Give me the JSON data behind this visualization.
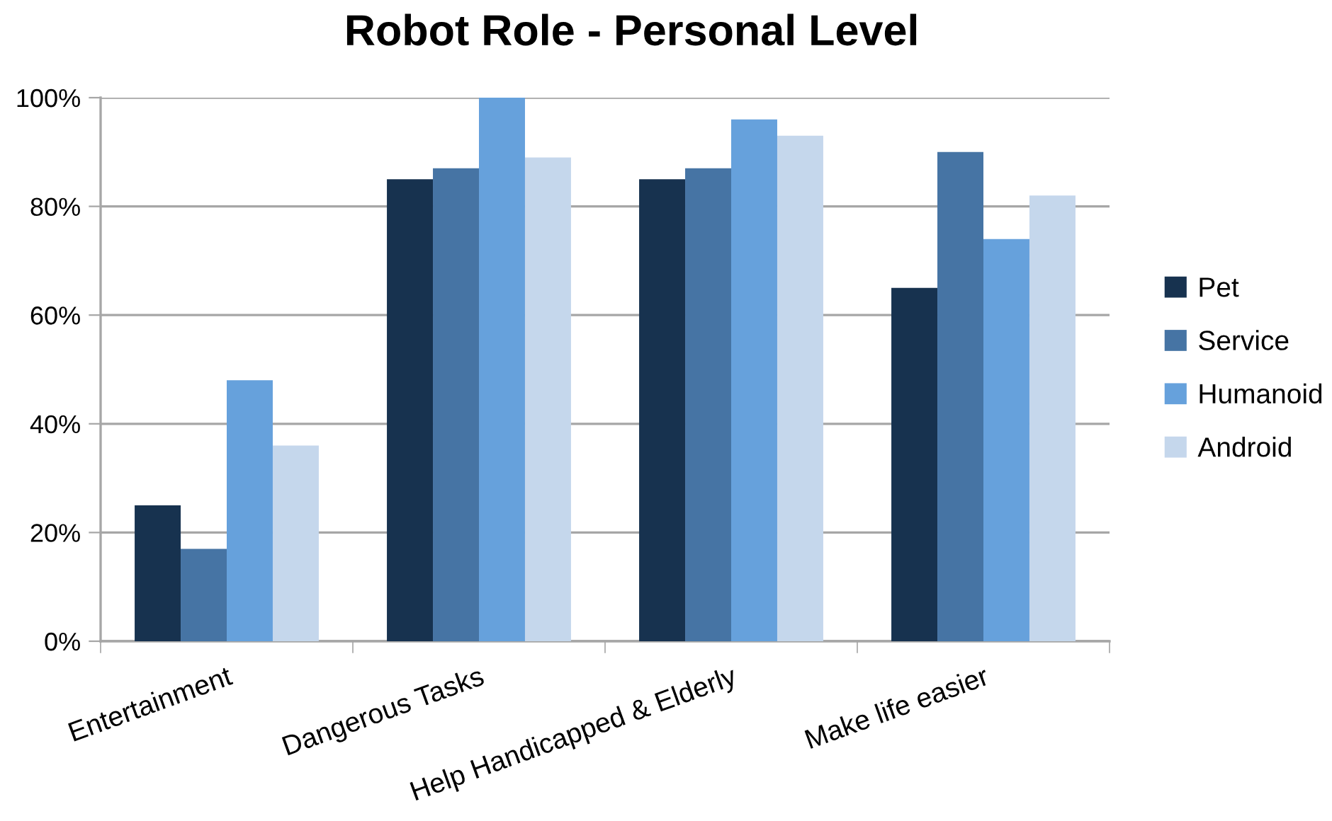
{
  "chart_data": {
    "type": "bar",
    "title": "Robot Role - Personal Level",
    "categories": [
      "Entertainment",
      "Dangerous Tasks",
      "Help Handicapped & Elderly",
      "Make life easier"
    ],
    "series": [
      {
        "name": "Pet",
        "color": "#17324f",
        "values": [
          25,
          85,
          85,
          65
        ]
      },
      {
        "name": "Service",
        "color": "#4674a4",
        "values": [
          17,
          87,
          87,
          90
        ]
      },
      {
        "name": "Humanoid",
        "color": "#66a1dc",
        "values": [
          48,
          100,
          96,
          74
        ]
      },
      {
        "name": "Android",
        "color": "#c5d7ec",
        "values": [
          36,
          89,
          93,
          82
        ]
      }
    ],
    "ylim": [
      0,
      100
    ],
    "yticks": [
      {
        "value": 0,
        "label": "0%"
      },
      {
        "value": 20,
        "label": "20%"
      },
      {
        "value": 40,
        "label": "40%"
      },
      {
        "value": 60,
        "label": "60%"
      },
      {
        "value": 80,
        "label": "80%"
      },
      {
        "value": 100,
        "label": "100%"
      }
    ],
    "grid": "y",
    "legend": "right"
  }
}
